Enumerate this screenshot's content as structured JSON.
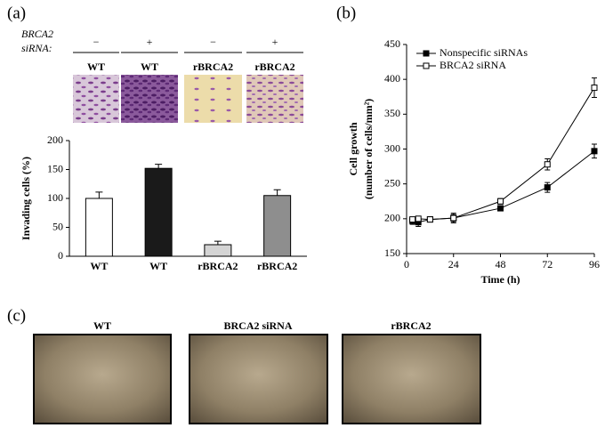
{
  "panel_labels": [
    "(a)",
    "(b)",
    "(c)"
  ],
  "panel_a_header": {
    "row_label": [
      "BRCA2",
      "siRNA:"
    ],
    "signs": [
      "−",
      "+",
      "−",
      "+"
    ],
    "image_labels": [
      "WT",
      "WT",
      "rBRCA2",
      "rBRCA2"
    ]
  },
  "panel_c": {
    "image_labels": [
      "WT",
      "BRCA2 siRNA",
      "rBRCA2"
    ]
  },
  "chart_data": [
    {
      "type": "bar",
      "ylabel": "Invading cells (%)",
      "categories": [
        "WT",
        "WT",
        "rBRCA2",
        "rBRCA2"
      ],
      "values": [
        100,
        152,
        20,
        105
      ],
      "errors": [
        11,
        7,
        6,
        10
      ],
      "colors": [
        "#ffffff",
        "#1a1a1a",
        "#d4d4d4",
        "#8e8e8e"
      ],
      "ylim": [
        0,
        200
      ],
      "yticks": [
        0,
        50,
        100,
        150,
        200
      ]
    },
    {
      "type": "line",
      "xlabel": "Time (h)",
      "ylabel": [
        "Cell growth",
        "(number of cells/mm²)"
      ],
      "x": [
        3,
        6,
        12,
        24,
        48,
        72,
        96
      ],
      "series": [
        {
          "name": "Nonspecific siRNAs",
          "color": "#000000",
          "marker_fill": "#000000",
          "values": [
            197,
            195,
            199,
            201,
            215,
            245,
            297
          ],
          "errors": [
            5,
            6,
            3,
            5,
            3,
            7,
            10
          ]
        },
        {
          "name": "BRCA2 siRNA",
          "color": "#000000",
          "marker_fill": "#ffffff",
          "values": [
            199,
            200,
            199,
            201,
            225,
            278,
            388
          ],
          "errors": [
            3,
            3,
            3,
            7,
            4,
            8,
            14
          ]
        }
      ],
      "xlim": [
        0,
        96
      ],
      "xticks": [
        0,
        24,
        48,
        72,
        96
      ],
      "ylim": [
        150,
        450
      ],
      "yticks": [
        150,
        200,
        250,
        300,
        350,
        400,
        450
      ],
      "legend": "upper left"
    }
  ]
}
